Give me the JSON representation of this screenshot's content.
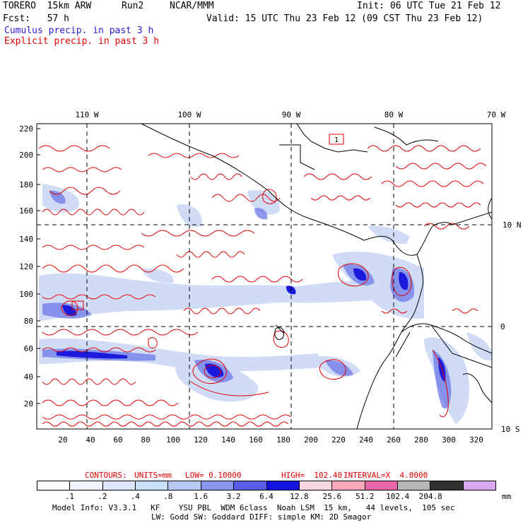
{
  "header": {
    "model": "TORERO  15km ARW",
    "run": "Run2",
    "center": "NCAR/MMM",
    "init": "Init: 06 UTC Tue 21 Feb 12",
    "fcst": "Fcst:   57 h",
    "valid": "Valid: 15 UTC Thu 23 Feb 12 (09 CST Thu 23 Feb 12)",
    "legend_cumulus": "Cumulus precip. in past 3 h",
    "legend_explicit": "Explicit precip. in past 3 h"
  },
  "map": {
    "lon_labels": [
      "110 W",
      "100 W",
      "90 W",
      "80 W",
      "70 W"
    ],
    "lat_labels": [
      "10 N",
      "0",
      "10 S"
    ],
    "y_ticks": [
      "220",
      "200",
      "180",
      "160",
      "140",
      "120",
      "100",
      "80",
      "60",
      "40",
      "20"
    ],
    "x_ticks": [
      "20",
      "40",
      "60",
      "80",
      "100",
      "120",
      "140",
      "160",
      "180",
      "200",
      "220",
      "240",
      "260",
      "280",
      "300",
      "320"
    ],
    "box_label": "1",
    "colors": {
      "coast": "#000000",
      "grid": "#000000",
      "explicit": "#e00000",
      "cumulus_light": "#c8d6f5",
      "cumulus_mid": "#6e78e8",
      "cumulus_dark": "#1a1adc"
    }
  },
  "contours": {
    "label_contours": "CONTOURS:",
    "label_units": "UNITS=mm",
    "label_low": "LOW= 0.10000",
    "label_high": "HIGH=  102.40",
    "label_interval": "INTERVAL=X  4.0000"
  },
  "colorbar": {
    "colors": [
      "#ffffff",
      "#f0f4ff",
      "#dce6ff",
      "#c6e0f8",
      "#b8c8f4",
      "#8a95ec",
      "#5a5ee6",
      "#1414e0",
      "#f8d8e0",
      "#f8a8b8",
      "#e868a8",
      "#b8b8b8",
      "#303030",
      "#d8a8f0"
    ],
    "labels": [
      ".1",
      ".2",
      ".4",
      ".8",
      "1.6",
      "3.2",
      "6.4",
      "12.8",
      "25.6",
      "51.2",
      "102.4",
      "204.8"
    ],
    "unit": "mm"
  },
  "footer": {
    "line1": "Model Info: V3.3.1   KF    YSU PBL  WDM 6class  Noah LSM  15 km,   44 levels,  105 sec",
    "line2": "LW: Godd SW: Goddard DIFF: simple KM: 2D Smagor"
  }
}
